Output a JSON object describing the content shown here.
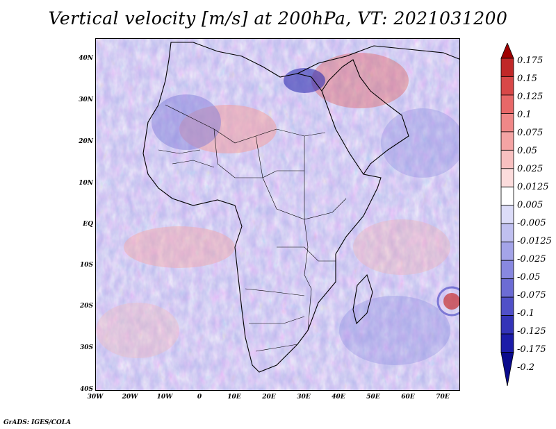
{
  "title": "Vertical velocity [m/s] at 200hPa, VT: 2021031200",
  "credit": "GrADS: IGES/COLA",
  "map": {
    "lat_labels": [
      "40N",
      "30N",
      "20N",
      "10N",
      "EQ",
      "10S",
      "20S",
      "30S",
      "40S"
    ],
    "lon_labels": [
      "30W",
      "20W",
      "10W",
      "0",
      "10E",
      "20E",
      "30E",
      "40E",
      "50E",
      "60E",
      "70E"
    ],
    "lon_range": [
      -30,
      75
    ],
    "lat_range": [
      -40,
      45
    ]
  },
  "colorbar": {
    "labels": [
      "0.175",
      "0.15",
      "0.125",
      "0.1",
      "0.075",
      "0.05",
      "0.025",
      "0.0125",
      "0.005",
      "-0.005",
      "-0.0125",
      "-0.025",
      "-0.05",
      "-0.075",
      "-0.1",
      "-0.125",
      "-0.175",
      "-0.2"
    ],
    "colors": [
      "#a00000",
      "#c02828",
      "#d84848",
      "#e86868",
      "#f08888",
      "#f4a4a4",
      "#f8c0c0",
      "#fcdcdc",
      "#ffffff",
      "#dcdcf8",
      "#c0c0f0",
      "#a4a4e8",
      "#8888e0",
      "#6c6cd4",
      "#5050c8",
      "#3434b8",
      "#1c1ca8",
      "#0a0a8c"
    ]
  }
}
